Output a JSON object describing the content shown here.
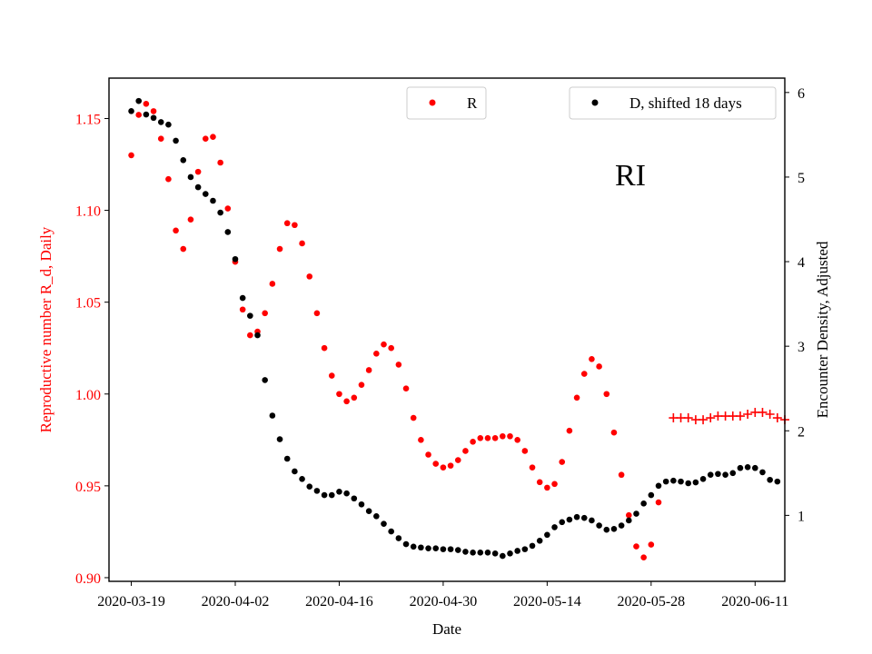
{
  "chart_data": {
    "type": "scatter",
    "annotation": "RI",
    "xlabel": "Date",
    "ylabel_left": "Reproductive number R_d, Daily",
    "ylabel_right": "Encounter Density, Adjusted",
    "x_ticks": [
      "2020-03-19",
      "2020-04-02",
      "2020-04-16",
      "2020-04-30",
      "2020-05-14",
      "2020-05-28",
      "2020-06-11"
    ],
    "y_left_ticks": [
      "0.90",
      "0.95",
      "1.00",
      "1.05",
      "1.10",
      "1.15"
    ],
    "y_right_ticks": [
      "1",
      "2",
      "3",
      "4",
      "5",
      "6"
    ],
    "xlim": [
      "2020-03-16",
      "2020-06-15"
    ],
    "ylim_left": [
      0.898,
      1.172
    ],
    "ylim_right": [
      0.22,
      6.17
    ],
    "grid": false,
    "legend_R_position": "top-center",
    "legend_D_position": "top-right",
    "colors": {
      "R": "#ff0000",
      "D": "#000000",
      "left_axis_text": "#ff0000",
      "right_axis_text": "#000000"
    },
    "series": [
      {
        "name": "R",
        "axis": "left",
        "marker": "dot",
        "start_date": "2020-03-19",
        "values": [
          1.13,
          1.152,
          1.158,
          1.154,
          1.139,
          1.117,
          1.089,
          1.079,
          1.095,
          1.121,
          1.139,
          1.14,
          1.126,
          1.101,
          1.072,
          1.046,
          1.032,
          1.034,
          1.044,
          1.06,
          1.079,
          1.093,
          1.092,
          1.082,
          1.064,
          1.044,
          1.025,
          1.01,
          1.0,
          0.996,
          0.998,
          1.005,
          1.013,
          1.022,
          1.027,
          1.025,
          1.016,
          1.003,
          0.987,
          0.975,
          0.967,
          0.962,
          0.96,
          0.961,
          0.964,
          0.969,
          0.974,
          0.976,
          0.976,
          0.976,
          0.977,
          0.977,
          0.975,
          0.969,
          0.96,
          0.952,
          0.949,
          0.951,
          0.963,
          0.98,
          0.998,
          1.011,
          1.019,
          1.015,
          1.0,
          0.979,
          0.956,
          0.934,
          0.917,
          0.911,
          0.918,
          0.941
        ]
      },
      {
        "name": "R",
        "axis": "left",
        "marker": "plus",
        "start_date": "2020-05-31",
        "values": [
          0.987,
          0.987,
          0.987,
          0.986,
          0.986,
          0.987,
          0.988,
          0.988,
          0.988,
          0.988,
          0.989,
          0.99,
          0.99,
          0.989,
          0.987,
          0.986
        ]
      },
      {
        "name": "D, shifted 18 days",
        "axis": "right",
        "marker": "dot",
        "start_date": "2020-03-19",
        "values": [
          5.78,
          5.9,
          5.74,
          5.7,
          5.65,
          5.62,
          5.43,
          5.2,
          5.0,
          4.88,
          4.8,
          4.72,
          4.58,
          4.35,
          4.03,
          3.57,
          3.36,
          3.13,
          2.6,
          2.18,
          1.9,
          1.67,
          1.52,
          1.43,
          1.34,
          1.29,
          1.24,
          1.24,
          1.28,
          1.26,
          1.2,
          1.13,
          1.05,
          0.99,
          0.9,
          0.81,
          0.73,
          0.66,
          0.63,
          0.62,
          0.61,
          0.61,
          0.6,
          0.6,
          0.59,
          0.57,
          0.56,
          0.56,
          0.56,
          0.55,
          0.52,
          0.55,
          0.58,
          0.6,
          0.64,
          0.7,
          0.77,
          0.86,
          0.92,
          0.95,
          0.98,
          0.97,
          0.94,
          0.88,
          0.83,
          0.84,
          0.88,
          0.94,
          1.02,
          1.14,
          1.24,
          1.35,
          1.4,
          1.41,
          1.4,
          1.38,
          1.39,
          1.43,
          1.48,
          1.49,
          1.48,
          1.5,
          1.56,
          1.57,
          1.56,
          1.51,
          1.42,
          1.4
        ]
      }
    ]
  }
}
